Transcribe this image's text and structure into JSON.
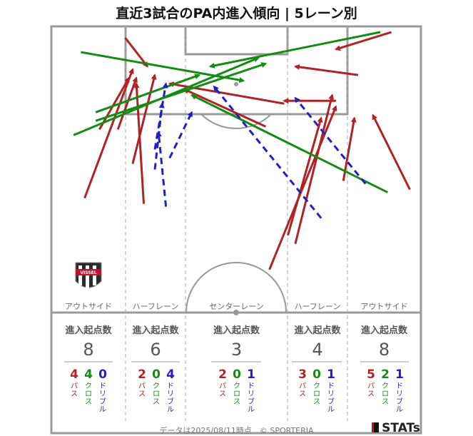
{
  "title": "直近3試合のPA内進入傾向 | 5レーン別",
  "colors": {
    "pass": "#b22222",
    "cross": "#148c14",
    "dribble": "#1f1fc8",
    "line": "#999999"
  },
  "lanes": [
    {
      "name": "アウトサイド",
      "head": "進入起点数",
      "total": "8",
      "pass": "4",
      "cross": "4",
      "dribble": "0"
    },
    {
      "name": "ハーフレーン",
      "head": "進入起点数",
      "total": "6",
      "pass": "2",
      "cross": "0",
      "dribble": "4"
    },
    {
      "name": "センターレーン",
      "head": "進入起点数",
      "total": "3",
      "pass": "2",
      "cross": "0",
      "dribble": "1"
    },
    {
      "name": "ハーフレーン",
      "head": "進入起点数",
      "total": "4",
      "pass": "3",
      "cross": "0",
      "dribble": "1"
    },
    {
      "name": "アウトサイド",
      "head": "進入起点数",
      "total": "8",
      "pass": "5",
      "cross": "2",
      "dribble": "1"
    }
  ],
  "legend": {
    "pass": "パス",
    "cross": "クロス",
    "dribble": "ドリブル"
  },
  "footer": "データは2025/08/11時点　© SPORTERIA",
  "brand": "STATs",
  "logo": "VISSEL",
  "chart_data": {
    "type": "scatter",
    "title": "直近3試合のPA内進入傾向 | 5レーン別",
    "note": "Arrows on a half-pitch; coordinates in pitch-diagram units (0-100 width, 0-100 depth from goal line)",
    "arrows": [
      {
        "kind": "pass",
        "from": [
          9,
          60
        ],
        "to": [
          22,
          15
        ]
      },
      {
        "kind": "pass",
        "from": [
          25,
          62
        ],
        "to": [
          23,
          20
        ]
      },
      {
        "kind": "pass",
        "from": [
          13,
          36
        ],
        "to": [
          21,
          18
        ]
      },
      {
        "kind": "pass",
        "from": [
          22,
          48
        ],
        "to": [
          28,
          17
        ]
      },
      {
        "kind": "pass",
        "from": [
          18,
          36
        ],
        "to": [
          23,
          18
        ]
      },
      {
        "kind": "pass",
        "from": [
          20,
          4
        ],
        "to": [
          26,
          14
        ]
      },
      {
        "kind": "pass",
        "from": [
          58,
          35
        ],
        "to": [
          36,
          22
        ]
      },
      {
        "kind": "pass",
        "from": [
          63,
          27
        ],
        "to": [
          32,
          20
        ]
      },
      {
        "kind": "pass",
        "from": [
          83,
          17
        ],
        "to": [
          66,
          14
        ]
      },
      {
        "kind": "pass",
        "from": [
          92,
          2
        ],
        "to": [
          77,
          8
        ]
      },
      {
        "kind": "pass",
        "from": [
          97,
          57
        ],
        "to": [
          87,
          31
        ]
      },
      {
        "kind": "pass",
        "from": [
          77,
          26
        ],
        "to": [
          63,
          26
        ]
      },
      {
        "kind": "pass",
        "from": [
          59,
          85
        ],
        "to": [
          77,
          28
        ]
      },
      {
        "kind": "pass",
        "from": [
          64,
          73
        ],
        "to": [
          73,
          32
        ]
      },
      {
        "kind": "pass",
        "from": [
          79,
          54
        ],
        "to": [
          82,
          32
        ]
      },
      {
        "kind": "pass",
        "from": [
          66,
          76
        ],
        "to": [
          76,
          24
        ]
      },
      {
        "kind": "cross",
        "from": [
          8,
          9
        ],
        "to": [
          52,
          19
        ]
      },
      {
        "kind": "cross",
        "from": [
          12,
          30
        ],
        "to": [
          40,
          17
        ]
      },
      {
        "kind": "cross",
        "from": [
          6,
          38
        ],
        "to": [
          56,
          11
        ]
      },
      {
        "kind": "cross",
        "from": [
          12,
          33
        ],
        "to": [
          58,
          13
        ]
      },
      {
        "kind": "cross",
        "from": [
          89,
          2
        ],
        "to": [
          43,
          14
        ]
      },
      {
        "kind": "cross",
        "from": [
          91,
          58
        ],
        "to": [
          38,
          24
        ]
      },
      {
        "kind": "dribble",
        "from": [
          31,
          63
        ],
        "to": [
          29,
          37
        ]
      },
      {
        "kind": "dribble",
        "from": [
          32,
          46
        ],
        "to": [
          38,
          30
        ]
      },
      {
        "kind": "dribble",
        "from": [
          28,
          43
        ],
        "to": [
          31,
          20
        ]
      },
      {
        "kind": "dribble",
        "from": [
          28,
          50
        ],
        "to": [
          30,
          27
        ]
      },
      {
        "kind": "dribble",
        "from": [
          73,
          67
        ],
        "to": [
          44,
          21
        ]
      },
      {
        "kind": "dribble",
        "from": [
          85,
          55
        ],
        "to": [
          66,
          25
        ]
      }
    ],
    "lanes": [
      "アウトサイド",
      "ハーフレーン",
      "センターレーン",
      "ハーフレーン",
      "アウトサイド"
    ],
    "entry_counts": [
      {
        "lane": "アウトサイド",
        "total": 8,
        "pass": 4,
        "cross": 4,
        "dribble": 0
      },
      {
        "lane": "ハーフレーン",
        "total": 6,
        "pass": 2,
        "cross": 0,
        "dribble": 4
      },
      {
        "lane": "センターレーン",
        "total": 3,
        "pass": 2,
        "cross": 0,
        "dribble": 1
      },
      {
        "lane": "ハーフレーン",
        "total": 4,
        "pass": 3,
        "cross": 0,
        "dribble": 1
      },
      {
        "lane": "アウトサイド",
        "total": 8,
        "pass": 5,
        "cross": 2,
        "dribble": 1
      }
    ]
  }
}
